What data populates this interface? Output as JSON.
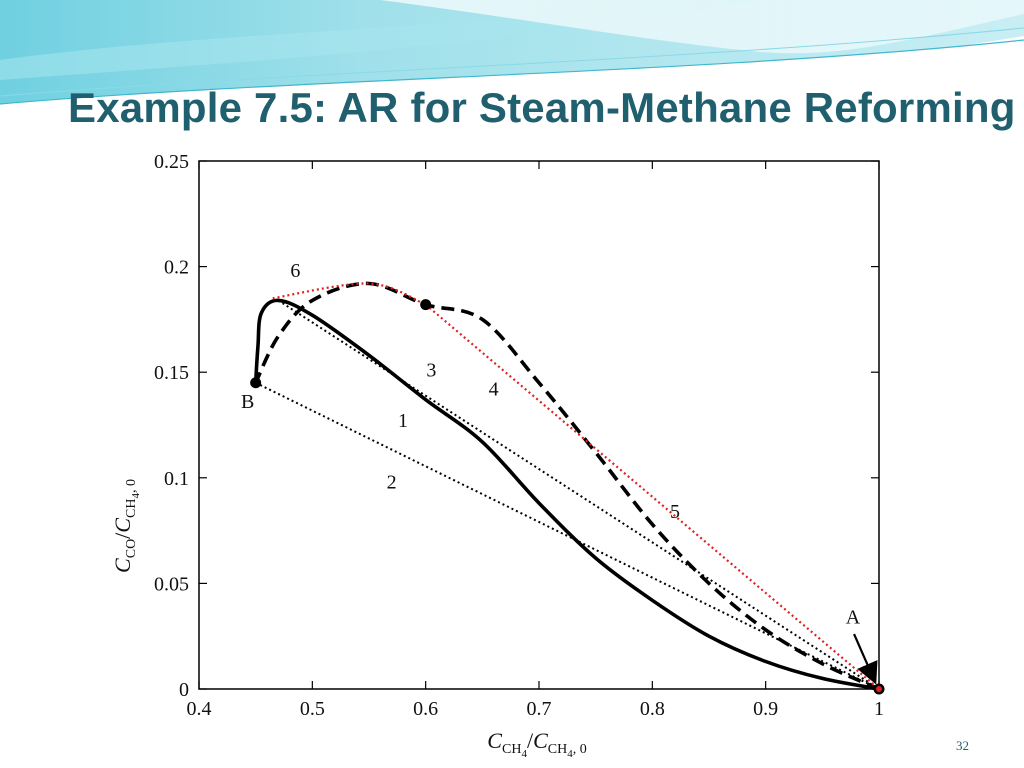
{
  "slide": {
    "title": "Example 7.5: AR for Steam-Methane Reforming",
    "page_number": "32"
  },
  "colors": {
    "title": "#1f5f6e",
    "banner_light": "#c8eef4",
    "banner_mid": "#6fd0e0",
    "curve": "#000000",
    "hull": "#e02020"
  },
  "chart_data": {
    "type": "line",
    "xlabel": {
      "sym": "C",
      "sub1": "CH",
      "sub2": "4",
      "slash": "/",
      "sym2": "C",
      "sub3": "CH",
      "sub4": "4",
      "sub5": ", 0"
    },
    "ylabel": {
      "sym": "C",
      "sub1": "CO",
      "slash": "/",
      "sym2": "C",
      "sub3": "CH",
      "sub4": "4",
      "sub5": ", 0"
    },
    "xlim": [
      0.4,
      1.0
    ],
    "ylim": [
      0,
      0.25
    ],
    "x_ticks": [
      0.4,
      0.5,
      0.6,
      0.7,
      0.8,
      0.9,
      1.0
    ],
    "x_tick_labels": [
      "0.4",
      "0.5",
      "0.6",
      "0.7",
      "0.8",
      "0.9",
      "1"
    ],
    "y_ticks": [
      0,
      0.05,
      0.1,
      0.15,
      0.2,
      0.25
    ],
    "y_tick_labels": [
      "0",
      "0.05",
      "0.1",
      "0.15",
      "0.2",
      "0.25"
    ],
    "grid": false,
    "series": [
      {
        "name": "1",
        "style": "solid",
        "x": [
          1.0,
          0.95,
          0.9,
          0.85,
          0.8,
          0.75,
          0.7,
          0.65,
          0.6,
          0.55,
          0.5,
          0.47,
          0.455,
          0.452,
          0.45
        ],
        "y": [
          0.0,
          0.005,
          0.013,
          0.025,
          0.042,
          0.062,
          0.088,
          0.117,
          0.137,
          0.158,
          0.177,
          0.184,
          0.178,
          0.162,
          0.145
        ]
      },
      {
        "name": "2",
        "style": "dotted",
        "x": [
          0.45,
          1.0
        ],
        "y": [
          0.145,
          0.0
        ]
      },
      {
        "name": "3",
        "style": "dotted",
        "x": [
          0.47,
          1.0
        ],
        "y": [
          0.184,
          0.0
        ]
      },
      {
        "name": "4",
        "style": "dashed",
        "x": [
          1.0,
          0.95,
          0.9,
          0.85,
          0.8,
          0.75,
          0.7,
          0.65,
          0.6,
          0.55,
          0.5,
          0.47,
          0.45
        ],
        "y": [
          0.0,
          0.012,
          0.028,
          0.05,
          0.078,
          0.112,
          0.145,
          0.175,
          0.182,
          0.192,
          0.184,
          0.167,
          0.145
        ]
      },
      {
        "name": "5",
        "style": "dotted",
        "color": "#e02020",
        "x": [
          0.6,
          1.0
        ],
        "y": [
          0.182,
          0.0
        ]
      },
      {
        "name": "6",
        "style": "dotted",
        "color": "#e02020",
        "x": [
          0.465,
          0.55,
          0.6
        ],
        "y": [
          0.185,
          0.192,
          0.182
        ]
      }
    ],
    "points": [
      {
        "name": "B",
        "x": 0.45,
        "y": 0.145
      },
      {
        "name": "",
        "x": 0.6,
        "y": 0.182
      },
      {
        "name": "A",
        "x": 1.0,
        "y": 0.0
      }
    ],
    "labels": [
      {
        "text": "1",
        "x": 0.58,
        "y": 0.124
      },
      {
        "text": "2",
        "x": 0.57,
        "y": 0.095
      },
      {
        "text": "3",
        "x": 0.605,
        "y": 0.148
      },
      {
        "text": "4",
        "x": 0.66,
        "y": 0.139
      },
      {
        "text": "5",
        "x": 0.82,
        "y": 0.081
      },
      {
        "text": "6",
        "x": 0.485,
        "y": 0.195
      },
      {
        "text": "B",
        "x": 0.443,
        "y": 0.133
      },
      {
        "text": "A",
        "x": 0.977,
        "y": 0.031
      }
    ]
  }
}
